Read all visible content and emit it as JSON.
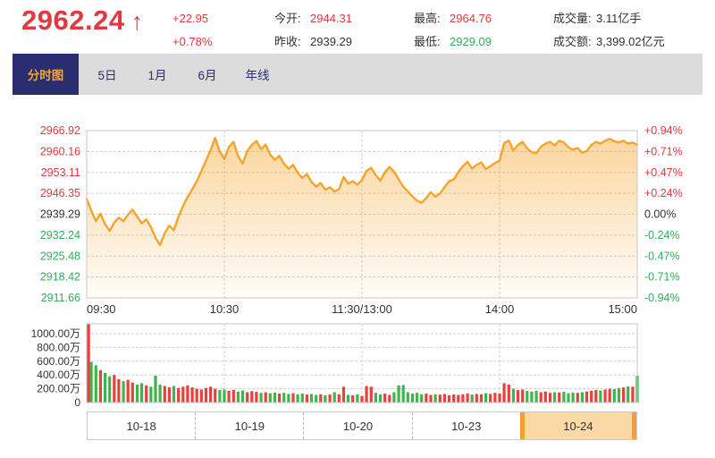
{
  "colors": {
    "red": "#e0393f",
    "green": "#2fae5b",
    "dark": "#333333",
    "line_orange": "#f6a42c",
    "area_orange": "#f6a630",
    "navy": "#2a2e70",
    "tab_bg": "#dcdcdc",
    "grid": "#cfcfcf",
    "panel_border": "#c9c9c9",
    "vol_red": "#e8403f",
    "vol_green": "#3db54a",
    "date_active_bg": "#fbd9a4",
    "date_active_border": "#f0a132"
  },
  "header": {
    "price": "2962.24",
    "arrow": "↑",
    "change": "+22.95",
    "change_pct": "+0.78%",
    "open_label": "今开:",
    "open_value": "2944.31",
    "prev_label": "昨收:",
    "prev_value": "2939.29",
    "high_label": "最高:",
    "high_value": "2964.76",
    "low_label": "最低:",
    "low_value": "2929.09",
    "volume_label": "成交量:",
    "volume_value": "3.11亿手",
    "turnover_label": "成交额:",
    "turnover_value": "3,399.02亿元"
  },
  "tabs": {
    "items": [
      {
        "label": "分时图",
        "active": true
      },
      {
        "label": "5日"
      },
      {
        "label": "1月"
      },
      {
        "label": "6月"
      },
      {
        "label": "年线"
      }
    ]
  },
  "dates": {
    "items": [
      {
        "label": "10-18"
      },
      {
        "label": "10-19"
      },
      {
        "label": "10-20"
      },
      {
        "label": "10-23"
      },
      {
        "label": "10-24",
        "active": true
      }
    ]
  },
  "chart_data": [
    {
      "type": "line",
      "title": "分时图",
      "prev_close": 2939.29,
      "ylim": [
        2911.66,
        2966.92
      ],
      "x_ticks": [
        "09:30",
        "10:30",
        "11:30/13:00",
        "14:00",
        "15:00"
      ],
      "y_ticks_left": [
        "2966.92",
        "2960.16",
        "2953.11",
        "2946.35",
        "2939.29",
        "2932.24",
        "2925.48",
        "2918.42",
        "2911.66"
      ],
      "y_ticks_right": [
        "+0.94%",
        "+0.71%",
        "+0.47%",
        "+0.24%",
        "0.00%",
        "-0.24%",
        "-0.47%",
        "-0.71%",
        "-0.94%"
      ],
      "grid": true,
      "values": [
        2944.31,
        2940.5,
        2937.0,
        2939.5,
        2936.0,
        2933.8,
        2936.5,
        2938.2,
        2937.0,
        2939.2,
        2940.8,
        2938.5,
        2936.3,
        2937.6,
        2935.0,
        2931.5,
        2929.09,
        2933.0,
        2935.5,
        2934.0,
        2938.5,
        2942.0,
        2945.0,
        2947.5,
        2950.2,
        2953.5,
        2957.0,
        2960.5,
        2964.5,
        2960.0,
        2957.5,
        2961.5,
        2963.2,
        2958.5,
        2956.0,
        2960.2,
        2962.2,
        2963.5,
        2960.8,
        2962.3,
        2959.0,
        2957.3,
        2958.6,
        2956.0,
        2954.3,
        2955.6,
        2953.0,
        2951.3,
        2952.6,
        2950.0,
        2948.4,
        2949.6,
        2947.4,
        2948.2,
        2946.8,
        2947.6,
        2951.6,
        2949.4,
        2950.2,
        2949.0,
        2950.6,
        2953.6,
        2954.6,
        2952.2,
        2950.4,
        2953.2,
        2954.9,
        2953.4,
        2950.8,
        2948.4,
        2946.8,
        2945.2,
        2943.8,
        2943.1,
        2944.6,
        2946.6,
        2945.1,
        2946.2,
        2948.2,
        2950.2,
        2950.8,
        2953.2,
        2955.2,
        2956.6,
        2954.4,
        2955.6,
        2956.4,
        2954.2,
        2955.2,
        2956.2,
        2957.0,
        2962.8,
        2963.6,
        2960.4,
        2962.2,
        2963.2,
        2961.0,
        2959.8,
        2959.4,
        2961.6,
        2962.6,
        2963.2,
        2962.0,
        2963.6,
        2963.0,
        2961.4,
        2960.6,
        2961.2,
        2959.6,
        2960.2,
        2962.2,
        2963.2,
        2962.6,
        2963.6,
        2964.2,
        2963.4,
        2963.0,
        2963.6,
        2962.6,
        2963.0,
        2962.24
      ]
    },
    {
      "type": "bar",
      "title": "成交量",
      "unit": "万",
      "ylim": [
        0,
        1143
      ],
      "y_ticks": [
        "1000.00万",
        "800.00万",
        "600.00万",
        "400.00万",
        "200.00万",
        "0"
      ],
      "y_tick_values": [
        1000,
        800,
        600,
        400,
        200,
        0
      ],
      "grid": true,
      "values": [
        1150,
        590,
        540,
        470,
        430,
        380,
        400,
        340,
        310,
        330,
        290,
        260,
        280,
        250,
        230,
        390,
        260,
        240,
        220,
        240,
        210,
        230,
        250,
        220,
        200,
        190,
        210,
        230,
        200,
        180,
        190,
        170,
        185,
        160,
        175,
        150,
        165,
        155,
        140,
        150,
        135,
        145,
        130,
        140,
        125,
        135,
        120,
        130,
        115,
        125,
        110,
        120,
        105,
        115,
        150,
        120,
        230,
        110,
        105,
        120,
        95,
        240,
        230,
        140,
        120,
        130,
        110,
        150,
        250,
        255,
        150,
        130,
        140,
        120,
        130,
        110,
        120,
        115,
        125,
        105,
        115,
        110,
        120,
        130,
        115,
        125,
        120,
        135,
        125,
        140,
        130,
        280,
        260,
        200,
        180,
        190,
        170,
        160,
        170,
        150,
        160,
        140,
        150,
        145,
        155,
        135,
        145,
        140,
        150,
        160,
        170,
        180,
        175,
        190,
        200,
        195,
        210,
        220,
        235,
        230,
        390
      ]
    }
  ]
}
